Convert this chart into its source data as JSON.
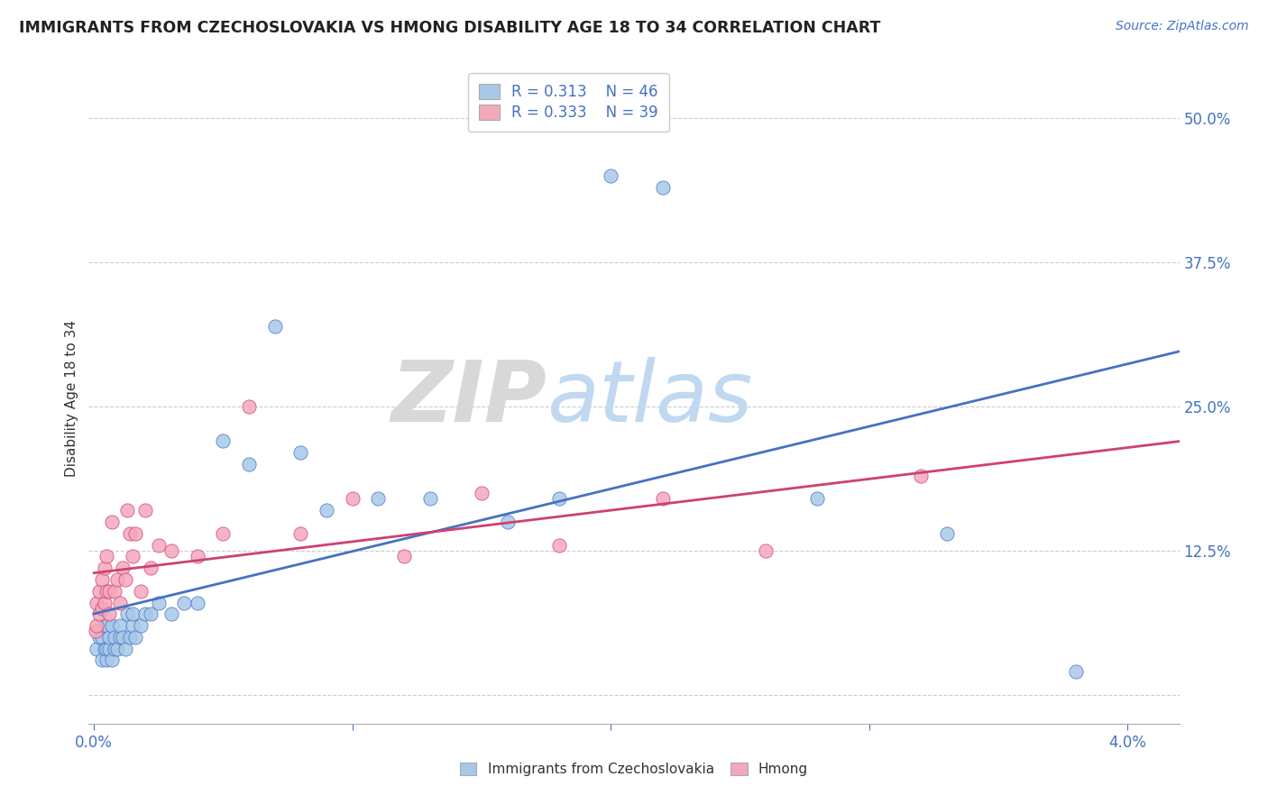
{
  "title": "IMMIGRANTS FROM CZECHOSLOVAKIA VS HMONG DISABILITY AGE 18 TO 34 CORRELATION CHART",
  "source_text": "Source: ZipAtlas.com",
  "ylabel": "Disability Age 18 to 34",
  "xlim": [
    -0.0002,
    0.042
  ],
  "ylim": [
    -0.025,
    0.54
  ],
  "x_ticks": [
    0.0,
    0.01,
    0.02,
    0.03,
    0.04
  ],
  "x_tick_labels": [
    "0.0%",
    "",
    "",
    "",
    "4.0%"
  ],
  "y_ticks": [
    0.0,
    0.125,
    0.25,
    0.375,
    0.5
  ],
  "y_tick_labels": [
    "",
    "12.5%",
    "25.0%",
    "37.5%",
    "50.0%"
  ],
  "legend_r1": "R = 0.313",
  "legend_n1": "N = 46",
  "legend_r2": "R = 0.333",
  "legend_n2": "N = 39",
  "color_czech": "#a8c8e8",
  "color_hmong": "#f4a8bc",
  "color_trend_czech": "#4472c4",
  "color_trend_hmong": "#d04070",
  "background_color": "#ffffff",
  "watermark_zip": "ZIP",
  "watermark_atlas": "atlas",
  "czech_x": [
    0.0001,
    0.0002,
    0.0003,
    0.0003,
    0.0004,
    0.0004,
    0.0005,
    0.0005,
    0.0005,
    0.0006,
    0.0006,
    0.0007,
    0.0007,
    0.0008,
    0.0008,
    0.0009,
    0.001,
    0.001,
    0.0011,
    0.0012,
    0.0013,
    0.0014,
    0.0015,
    0.0015,
    0.0016,
    0.0018,
    0.002,
    0.0022,
    0.0025,
    0.003,
    0.0035,
    0.004,
    0.005,
    0.006,
    0.007,
    0.008,
    0.009,
    0.011,
    0.013,
    0.016,
    0.018,
    0.02,
    0.022,
    0.028,
    0.033,
    0.038
  ],
  "czech_y": [
    0.04,
    0.05,
    0.03,
    0.05,
    0.04,
    0.06,
    0.03,
    0.04,
    0.06,
    0.04,
    0.05,
    0.03,
    0.06,
    0.04,
    0.05,
    0.04,
    0.05,
    0.06,
    0.05,
    0.04,
    0.07,
    0.05,
    0.06,
    0.07,
    0.05,
    0.06,
    0.07,
    0.07,
    0.08,
    0.07,
    0.08,
    0.08,
    0.22,
    0.2,
    0.32,
    0.21,
    0.16,
    0.17,
    0.17,
    0.15,
    0.17,
    0.45,
    0.44,
    0.17,
    0.14,
    0.02
  ],
  "hmong_x": [
    5e-05,
    0.0001,
    0.0001,
    0.0002,
    0.0002,
    0.0003,
    0.0003,
    0.0004,
    0.0004,
    0.0005,
    0.0005,
    0.0006,
    0.0006,
    0.0007,
    0.0008,
    0.0009,
    0.001,
    0.0011,
    0.0012,
    0.0013,
    0.0014,
    0.0015,
    0.0016,
    0.0018,
    0.002,
    0.0022,
    0.0025,
    0.003,
    0.004,
    0.005,
    0.006,
    0.008,
    0.01,
    0.012,
    0.015,
    0.018,
    0.022,
    0.026,
    0.032
  ],
  "hmong_y": [
    0.055,
    0.06,
    0.08,
    0.07,
    0.09,
    0.075,
    0.1,
    0.08,
    0.11,
    0.09,
    0.12,
    0.07,
    0.09,
    0.15,
    0.09,
    0.1,
    0.08,
    0.11,
    0.1,
    0.16,
    0.14,
    0.12,
    0.14,
    0.09,
    0.16,
    0.11,
    0.13,
    0.125,
    0.12,
    0.14,
    0.25,
    0.14,
    0.17,
    0.12,
    0.175,
    0.13,
    0.17,
    0.125,
    0.19
  ]
}
